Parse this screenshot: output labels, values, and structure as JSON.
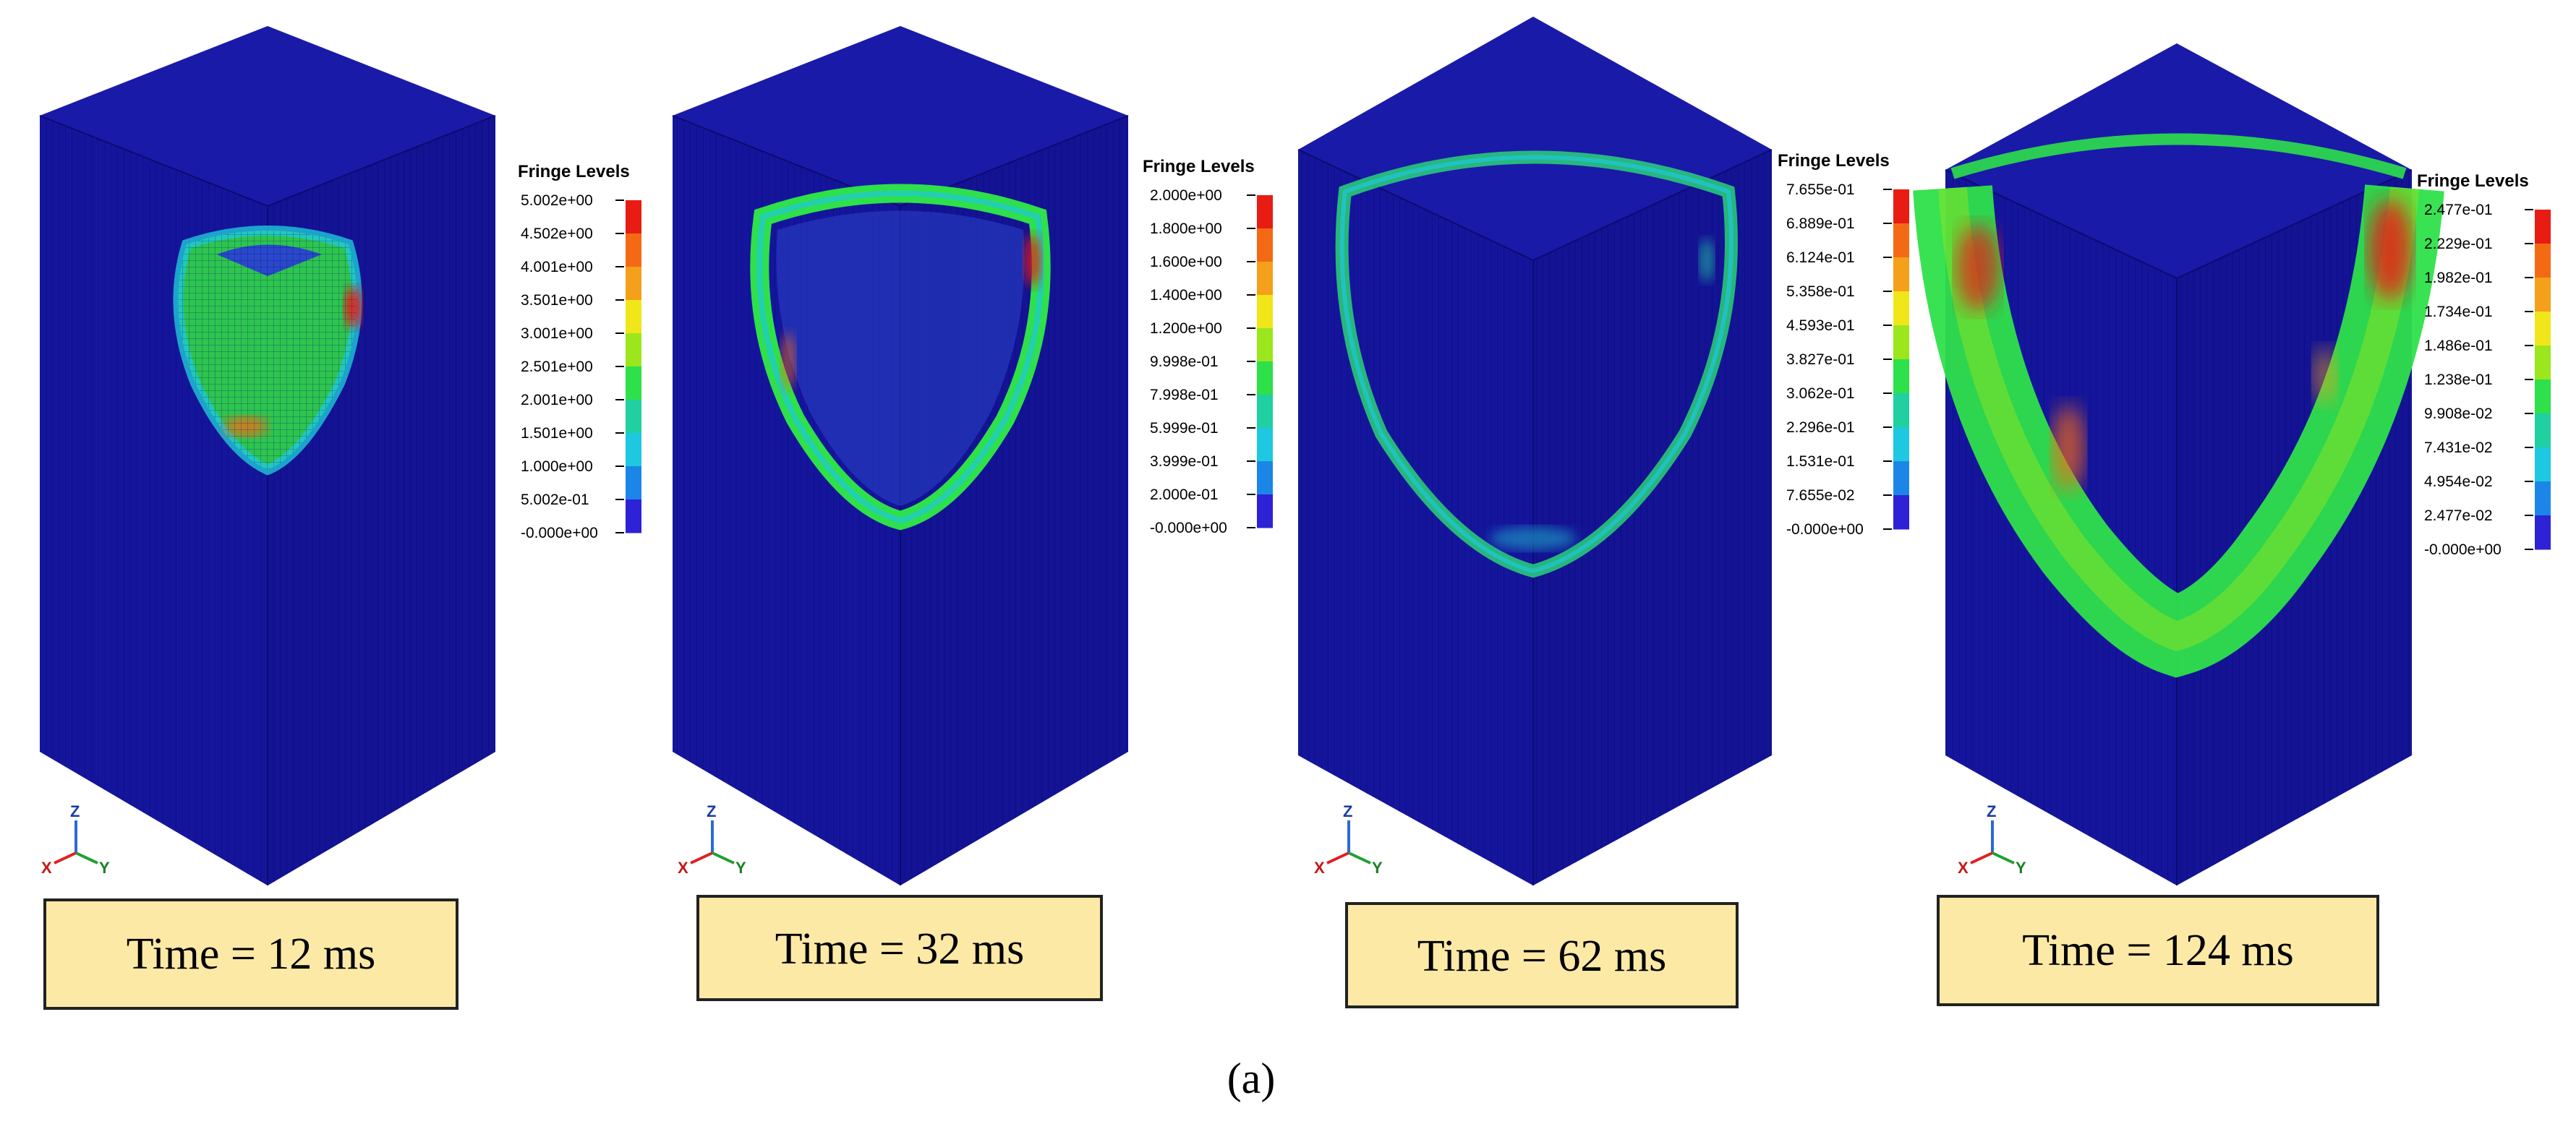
{
  "figure": {
    "caption": "(a)",
    "legend_title": "Fringe Levels",
    "colors": {
      "background": "#ffffff",
      "mesh_blue": "#1515a0",
      "label_fill": "#fde9a6",
      "label_border": "#222222",
      "scale": [
        "#2d22d6",
        "#1c86e8",
        "#1ec8e0",
        "#20d0a0",
        "#2ee04a",
        "#9ce61e",
        "#f0e61a",
        "#f4a01a",
        "#f46a14",
        "#e81c12"
      ]
    },
    "panels": [
      {
        "time_label": "Time = 12 ms",
        "fringe_levels": [
          "5.002e+00",
          "4.502e+00",
          "4.001e+00",
          "3.501e+00",
          "3.001e+00",
          "2.501e+00",
          "2.001e+00",
          "1.501e+00",
          "1.000e+00",
          "5.002e-01",
          "-0.000e+00"
        ]
      },
      {
        "time_label": "Time = 32 ms",
        "fringe_levels": [
          "2.000e+00",
          "1.800e+00",
          "1.600e+00",
          "1.400e+00",
          "1.200e+00",
          "9.998e-01",
          "7.998e-01",
          "5.999e-01",
          "3.999e-01",
          "2.000e-01",
          "-0.000e+00"
        ]
      },
      {
        "time_label": "Time = 62 ms",
        "fringe_levels": [
          "7.655e-01",
          "6.889e-01",
          "6.124e-01",
          "5.358e-01",
          "4.593e-01",
          "3.827e-01",
          "3.062e-01",
          "2.296e-01",
          "1.531e-01",
          "7.655e-02",
          "-0.000e+00"
        ]
      },
      {
        "time_label": "Time = 124 ms",
        "fringe_levels": [
          "2.477e-01",
          "2.229e-01",
          "1.982e-01",
          "1.734e-01",
          "1.486e-01",
          "1.238e-01",
          "9.908e-02",
          "7.431e-02",
          "4.954e-02",
          "2.477e-02",
          "-0.000e+00"
        ]
      }
    ],
    "axes_triad": {
      "x": "X",
      "y": "Y",
      "z": "Z"
    }
  }
}
